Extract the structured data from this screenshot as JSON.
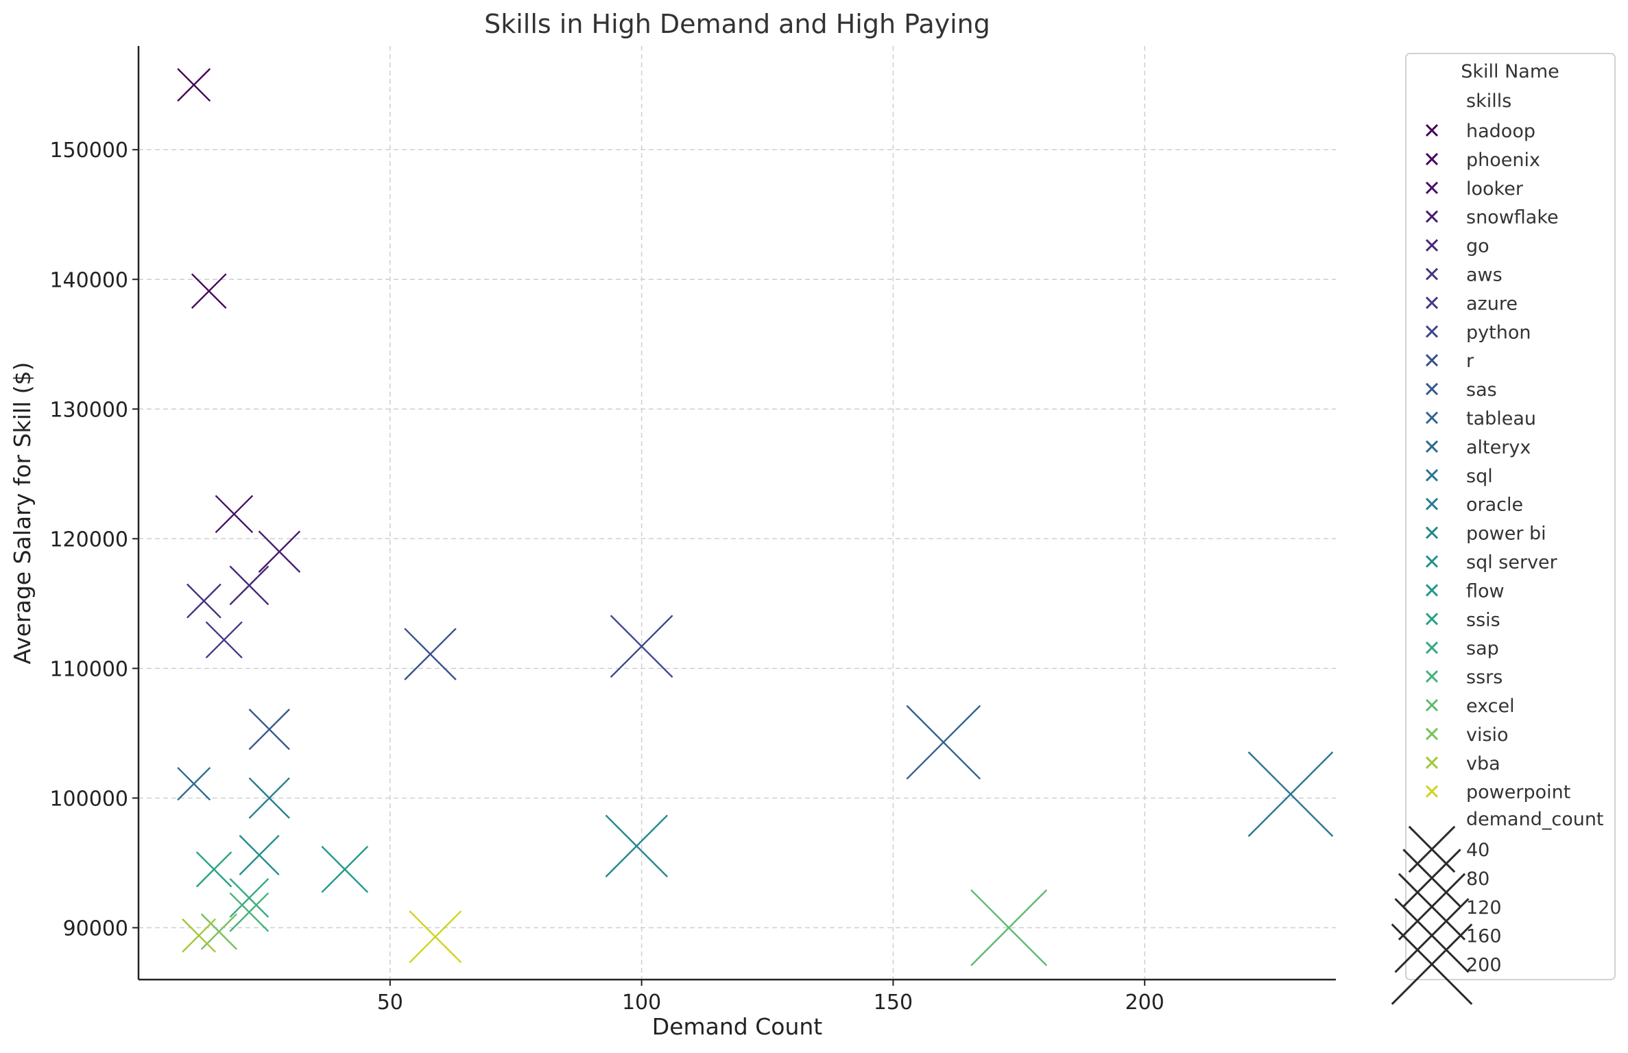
{
  "chart_data": {
    "type": "scatter",
    "title": "Skills in High Demand and High Paying",
    "xlabel": "Demand Count",
    "ylabel": "Average Salary for Skill ($)",
    "xlim": [
      0,
      238
    ],
    "ylim": [
      86000,
      158000
    ],
    "xticks": [
      50,
      100,
      150,
      200
    ],
    "yticks": [
      90000,
      100000,
      110000,
      120000,
      130000,
      140000,
      150000
    ],
    "grid": true,
    "marker": "x",
    "legend": {
      "placement": "outside-right",
      "title": "Skill Name",
      "hue_header": "skills",
      "size_header": "demand_count",
      "size_entries": [
        40,
        80,
        120,
        160,
        200
      ]
    },
    "series": [
      {
        "name": "hadoop",
        "color": "#440154",
        "x": 11,
        "y": 155000
      },
      {
        "name": "phoenix",
        "color": "#46085c",
        "x": 14,
        "y": 139100
      },
      {
        "name": "looker",
        "color": "#471365",
        "x": 19,
        "y": 121900
      },
      {
        "name": "snowflake",
        "color": "#481d6f",
        "x": 28,
        "y": 119000
      },
      {
        "name": "go",
        "color": "#472878",
        "x": 22,
        "y": 116400
      },
      {
        "name": "aws",
        "color": "#45317f",
        "x": 13,
        "y": 115200
      },
      {
        "name": "azure",
        "color": "#423b85",
        "x": 17,
        "y": 112200
      },
      {
        "name": "python",
        "color": "#3d468a",
        "x": 100,
        "y": 111700
      },
      {
        "name": "r",
        "color": "#39508b",
        "x": 58,
        "y": 111100
      },
      {
        "name": "sas",
        "color": "#34598c",
        "x": 26,
        "y": 105300
      },
      {
        "name": "tableau",
        "color": "#30628d",
        "x": 160,
        "y": 104300
      },
      {
        "name": "alteryx",
        "color": "#2c6b8e",
        "x": 11,
        "y": 101100
      },
      {
        "name": "sql",
        "color": "#29758e",
        "x": 229,
        "y": 100300
      },
      {
        "name": "oracle",
        "color": "#267e8e",
        "x": 26,
        "y": 100000
      },
      {
        "name": "power bi",
        "color": "#22868d",
        "x": 99,
        "y": 96300
      },
      {
        "name": "sql server",
        "color": "#1f8f8b",
        "x": 24,
        "y": 95600
      },
      {
        "name": "flow",
        "color": "#1f988a",
        "x": 41,
        "y": 94500
      },
      {
        "name": "ssis",
        "color": "#27a185",
        "x": 15,
        "y": 94500
      },
      {
        "name": "sap",
        "color": "#34aa7f",
        "x": 22,
        "y": 92300
      },
      {
        "name": "ssrs",
        "color": "#46b278",
        "x": 22,
        "y": 91200
      },
      {
        "name": "excel",
        "color": "#5dba6c",
        "x": 173,
        "y": 90000
      },
      {
        "name": "visio",
        "color": "#78c15c",
        "x": 16,
        "y": 89700
      },
      {
        "name": "vba",
        "color": "#a2c73a",
        "x": 12,
        "y": 89400
      },
      {
        "name": "powerpoint",
        "color": "#ccd41e",
        "x": 59,
        "y": 89300
      }
    ]
  }
}
